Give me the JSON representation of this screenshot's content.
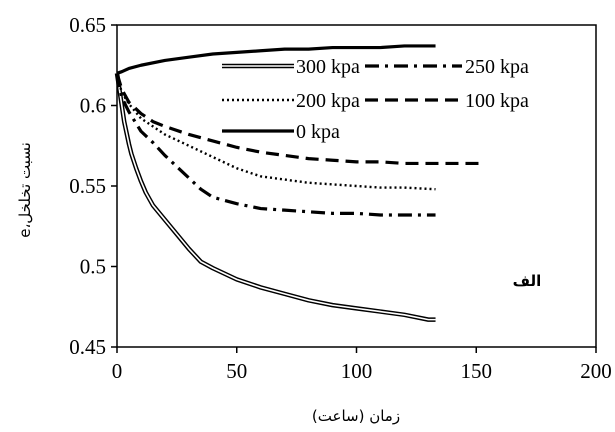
{
  "chart_data": {
    "type": "line",
    "title": "",
    "xlabel": "زمان (ساعت)",
    "ylabel": "نسبت تخلخل،e",
    "annotation": "الف",
    "xlim": [
      0,
      200
    ],
    "ylim": [
      0.45,
      0.65
    ],
    "xticks": [
      "0",
      "50",
      "100",
      "150",
      "200"
    ],
    "yticks": [
      "0.45",
      "0.5",
      "0.55",
      "0.6",
      "0.65"
    ],
    "grid": false,
    "legend_position": "top-right inside plot",
    "series": [
      {
        "name": "300 kpa",
        "style": "double",
        "x": [
          0,
          1,
          2,
          3,
          4,
          5,
          6,
          8,
          10,
          12,
          15,
          20,
          25,
          30,
          35,
          40,
          50,
          60,
          70,
          80,
          90,
          100,
          110,
          120,
          130,
          133
        ],
        "y": [
          0.62,
          0.61,
          0.6,
          0.59,
          0.583,
          0.576,
          0.57,
          0.561,
          0.553,
          0.546,
          0.538,
          0.529,
          0.52,
          0.511,
          0.503,
          0.499,
          0.492,
          0.487,
          0.483,
          0.479,
          0.476,
          0.474,
          0.472,
          0.47,
          0.467,
          0.467
        ]
      },
      {
        "name": "250 kpa",
        "style": "dashdot",
        "x": [
          0,
          2,
          5,
          10,
          15,
          20,
          25,
          30,
          35,
          40,
          50,
          60,
          70,
          80,
          90,
          100,
          110,
          120,
          130,
          133
        ],
        "y": [
          0.62,
          0.605,
          0.596,
          0.584,
          0.577,
          0.569,
          0.562,
          0.555,
          0.548,
          0.543,
          0.539,
          0.536,
          0.535,
          0.534,
          0.533,
          0.533,
          0.532,
          0.532,
          0.532,
          0.532
        ]
      },
      {
        "name": "200 kpa",
        "style": "dotted",
        "x": [
          0,
          2,
          5,
          10,
          15,
          20,
          30,
          40,
          50,
          60,
          70,
          80,
          90,
          100,
          110,
          120,
          133
        ],
        "y": [
          0.62,
          0.608,
          0.601,
          0.592,
          0.587,
          0.582,
          0.575,
          0.568,
          0.561,
          0.556,
          0.554,
          0.552,
          0.551,
          0.55,
          0.549,
          0.549,
          0.548
        ]
      },
      {
        "name": "100 kpa",
        "style": "dashed",
        "x": [
          0,
          2,
          5,
          10,
          15,
          20,
          30,
          40,
          50,
          60,
          70,
          80,
          90,
          100,
          110,
          120,
          130,
          140,
          153
        ],
        "y": [
          0.62,
          0.61,
          0.602,
          0.595,
          0.59,
          0.587,
          0.582,
          0.578,
          0.574,
          0.571,
          0.569,
          0.567,
          0.566,
          0.565,
          0.565,
          0.564,
          0.564,
          0.564,
          0.564
        ]
      },
      {
        "name": "0 kpa",
        "style": "solid",
        "x": [
          0,
          2,
          5,
          10,
          20,
          30,
          40,
          50,
          60,
          70,
          80,
          90,
          100,
          110,
          120,
          133
        ],
        "y": [
          0.62,
          0.621,
          0.623,
          0.625,
          0.628,
          0.63,
          0.632,
          0.633,
          0.634,
          0.635,
          0.635,
          0.636,
          0.636,
          0.636,
          0.637,
          0.637
        ]
      }
    ]
  }
}
